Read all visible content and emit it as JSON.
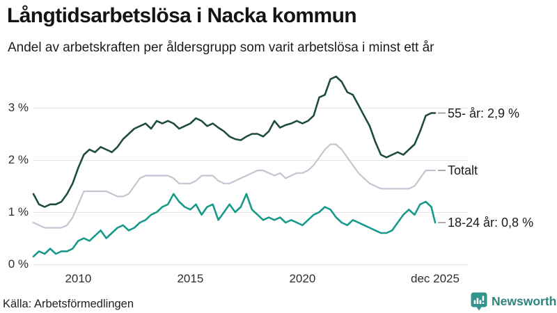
{
  "header": {
    "title": "Långtidsarbetslösa i Nacka kommun",
    "subtitle": "Andel av arbetskraften per åldersgrupp som varit arbetslösa i minst ett år"
  },
  "footer": {
    "source": "Källa: Arbetsförmedlingen",
    "brand": "Newsworthy",
    "brand_icon": "bar-chart-speech-bubble-icon"
  },
  "colors": {
    "series_55": "#1E4B41",
    "series_total": "#C7C3D1",
    "series_18_24": "#17998A",
    "gridline": "#E4E4E8",
    "tick_dash": "#8F8F94",
    "brand_teal": "#2E837C",
    "brand_icon_fill": "#33948B",
    "text": "#1A1A1A"
  },
  "chart_data": {
    "type": "line",
    "title": "Långtidsarbetslösa i Nacka kommun",
    "subtitle": "Andel av arbetskraften per åldersgrupp som varit arbetslösa i minst ett år",
    "xlabel": "",
    "ylabel": "",
    "unit": "%",
    "grid": "horizontal",
    "legend_position": "end-of-line-right",
    "xlim": [
      2008,
      2025.92
    ],
    "ylim": [
      0,
      3.73
    ],
    "yticks": [
      {
        "label": "0 %",
        "value": 0
      },
      {
        "label": "1 %",
        "value": 1
      },
      {
        "label": "2 %",
        "value": 2
      },
      {
        "label": "3 %",
        "value": 3
      }
    ],
    "xticks": [
      {
        "label": "2010",
        "value": 2010
      },
      {
        "label": "2015",
        "value": 2015
      },
      {
        "label": "2020",
        "value": 2020
      },
      {
        "label": "dec 2025",
        "value": 2025.92
      }
    ],
    "x": [
      2008,
      2008.25,
      2008.5,
      2008.75,
      2009,
      2009.25,
      2009.5,
      2009.75,
      2010,
      2010.25,
      2010.5,
      2010.75,
      2011,
      2011.25,
      2011.5,
      2011.75,
      2012,
      2012.25,
      2012.5,
      2012.75,
      2013,
      2013.25,
      2013.5,
      2013.75,
      2014,
      2014.25,
      2014.5,
      2014.75,
      2015,
      2015.25,
      2015.5,
      2015.75,
      2016,
      2016.25,
      2016.5,
      2016.75,
      2017,
      2017.25,
      2017.5,
      2017.75,
      2018,
      2018.25,
      2018.5,
      2018.75,
      2019,
      2019.25,
      2019.5,
      2019.75,
      2020,
      2020.25,
      2020.5,
      2020.75,
      2021,
      2021.25,
      2021.5,
      2021.75,
      2022,
      2022.25,
      2022.5,
      2022.75,
      2023,
      2023.25,
      2023.5,
      2023.75,
      2024,
      2024.25,
      2024.5,
      2024.75,
      2025,
      2025.25,
      2025.5,
      2025.75,
      2025.92
    ],
    "series": [
      {
        "name": "55- år",
        "end_label": "55- år: 2,9 %",
        "end_value_label": "2,9 %",
        "color": "#1E4B41",
        "stroke_width": 2.6,
        "values": [
          1.35,
          1.15,
          1.1,
          1.15,
          1.15,
          1.2,
          1.35,
          1.55,
          1.85,
          2.1,
          2.2,
          2.15,
          2.25,
          2.2,
          2.15,
          2.25,
          2.4,
          2.5,
          2.6,
          2.65,
          2.7,
          2.6,
          2.75,
          2.7,
          2.75,
          2.7,
          2.6,
          2.65,
          2.7,
          2.8,
          2.75,
          2.65,
          2.7,
          2.62,
          2.55,
          2.45,
          2.4,
          2.38,
          2.45,
          2.5,
          2.5,
          2.45,
          2.55,
          2.75,
          2.62,
          2.67,
          2.7,
          2.75,
          2.7,
          2.75,
          2.85,
          3.2,
          3.25,
          3.55,
          3.6,
          3.5,
          3.3,
          3.25,
          3.05,
          2.85,
          2.65,
          2.35,
          2.1,
          2.05,
          2.1,
          2.15,
          2.1,
          2.2,
          2.3,
          2.55,
          2.85,
          2.9,
          2.9
        ]
      },
      {
        "name": "Totalt",
        "end_label": "Totalt",
        "end_value_label": "",
        "color": "#C7C3D1",
        "stroke_width": 2.2,
        "values": [
          0.8,
          0.75,
          0.7,
          0.7,
          0.7,
          0.7,
          0.75,
          0.9,
          1.15,
          1.4,
          1.4,
          1.4,
          1.4,
          1.4,
          1.35,
          1.3,
          1.3,
          1.35,
          1.5,
          1.65,
          1.7,
          1.7,
          1.7,
          1.7,
          1.7,
          1.65,
          1.55,
          1.55,
          1.55,
          1.6,
          1.7,
          1.7,
          1.7,
          1.6,
          1.55,
          1.55,
          1.6,
          1.65,
          1.7,
          1.75,
          1.8,
          1.8,
          1.75,
          1.7,
          1.75,
          1.65,
          1.7,
          1.75,
          1.75,
          1.8,
          1.9,
          2.05,
          2.2,
          2.3,
          2.3,
          2.2,
          2.05,
          1.9,
          1.75,
          1.65,
          1.55,
          1.5,
          1.45,
          1.45,
          1.45,
          1.45,
          1.45,
          1.45,
          1.5,
          1.65,
          1.8,
          1.8,
          1.8
        ]
      },
      {
        "name": "18-24 år",
        "end_label": "18-24 år: 0,8 %",
        "end_value_label": "0,8 %",
        "color": "#17998A",
        "stroke_width": 2.6,
        "values": [
          0.15,
          0.25,
          0.2,
          0.3,
          0.2,
          0.25,
          0.25,
          0.3,
          0.45,
          0.5,
          0.45,
          0.55,
          0.65,
          0.5,
          0.6,
          0.7,
          0.75,
          0.65,
          0.7,
          0.8,
          0.85,
          0.95,
          1.0,
          1.1,
          1.15,
          1.35,
          1.2,
          1.1,
          1.05,
          1.15,
          0.95,
          1.1,
          1.15,
          0.85,
          1.0,
          1.15,
          1.0,
          1.1,
          1.35,
          1.05,
          0.95,
          0.85,
          0.9,
          0.85,
          0.9,
          0.8,
          0.85,
          0.8,
          0.75,
          0.85,
          0.95,
          1.0,
          1.1,
          1.05,
          0.9,
          0.8,
          0.75,
          0.85,
          0.8,
          0.75,
          0.7,
          0.65,
          0.6,
          0.6,
          0.65,
          0.8,
          0.95,
          1.05,
          0.95,
          1.15,
          1.2,
          1.1,
          0.8
        ]
      }
    ]
  }
}
